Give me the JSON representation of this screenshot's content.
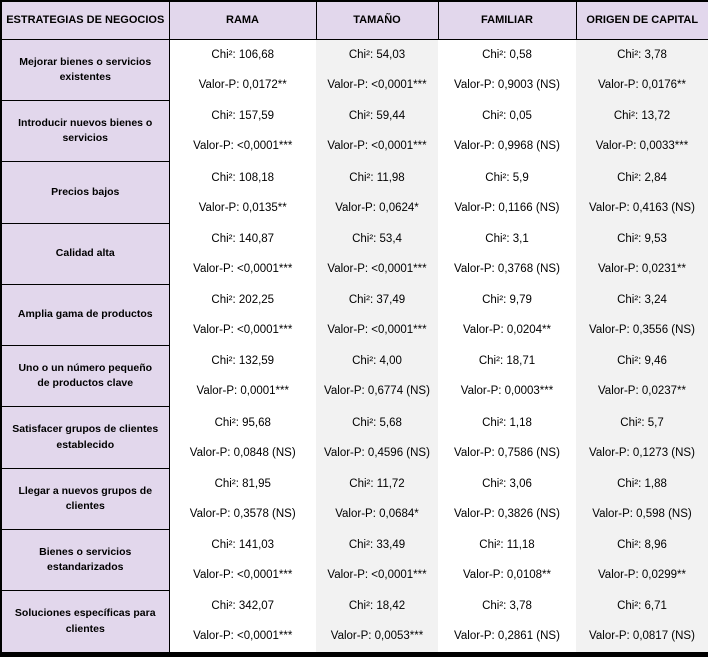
{
  "colors": {
    "header_bg": "#e2d7ec",
    "shaded_col_bg": "#f2f2f2",
    "border": "#000000"
  },
  "table": {
    "headers": [
      "ESTRATEGIAS DE NEGOCIOS",
      "RAMA",
      "TAMAÑO",
      "FAMILIAR",
      "ORIGEN DE CAPITAL"
    ],
    "rows": [
      {
        "strategy": "Mejorar bienes o servicios\nexistentes",
        "cells": [
          {
            "chi": "Chi²: 106,68",
            "p": "Valor-P: 0,0172**"
          },
          {
            "chi": "Chi²: 54,03",
            "p": "Valor-P: <0,0001***"
          },
          {
            "chi": "Chi²: 0,58",
            "p": "Valor-P: 0,9003 (NS)"
          },
          {
            "chi": "Chi²: 3,78",
            "p": "Valor-P: 0,0176**"
          }
        ]
      },
      {
        "strategy": "Introducir nuevos bienes o\nservicios",
        "cells": [
          {
            "chi": "Chi²: 157,59",
            "p": "Valor-P: <0,0001***"
          },
          {
            "chi": "Chi²: 59,44",
            "p": "Valor-P: <0,0001***"
          },
          {
            "chi": "Chi²: 0,05",
            "p": "Valor-P: 0,9968 (NS)"
          },
          {
            "chi": "Chi²: 13,72",
            "p": "Valor-P: 0,0033***"
          }
        ]
      },
      {
        "strategy": "Precios bajos",
        "cells": [
          {
            "chi": "Chi²: 108,18",
            "p": "Valor-P: 0,0135**"
          },
          {
            "chi": "Chi²: 11,98",
            "p": "Valor-P: 0,0624*"
          },
          {
            "chi": "Chi²: 5,9",
            "p": "Valor-P: 0,1166 (NS)"
          },
          {
            "chi": "Chi²: 2,84",
            "p": "Valor-P: 0,4163 (NS)"
          }
        ]
      },
      {
        "strategy": "Calidad alta",
        "cells": [
          {
            "chi": "Chi²: 140,87",
            "p": "Valor-P: <0,0001***"
          },
          {
            "chi": "Chi²: 53,4",
            "p": "Valor-P: <0,0001***"
          },
          {
            "chi": "Chi²: 3,1",
            "p": "Valor-P: 0,3768 (NS)"
          },
          {
            "chi": "Chi²: 9,53",
            "p": "Valor-P: 0,0231**"
          }
        ]
      },
      {
        "strategy": "Amplia gama de productos",
        "cells": [
          {
            "chi": "Chi²: 202,25",
            "p": "Valor-P: <0,0001***"
          },
          {
            "chi": "Chi²: 37,49",
            "p": "Valor-P: <0,0001***"
          },
          {
            "chi": "Chi²: 9,79",
            "p": "Valor-P: 0,0204**"
          },
          {
            "chi": "Chi²: 3,24",
            "p": "Valor-P: 0,3556 (NS)"
          }
        ]
      },
      {
        "strategy": "Uno o un número pequeño\nde productos clave",
        "cells": [
          {
            "chi": "Chi²: 132,59",
            "p": "Valor-P: 0,0001***"
          },
          {
            "chi": "Chi²: 4,00",
            "p": "Valor-P: 0,6774 (NS)"
          },
          {
            "chi": "Chi²: 18,71",
            "p": "Valor-P: 0,0003***"
          },
          {
            "chi": "Chi²: 9,46",
            "p": "Valor-P: 0,0237**"
          }
        ]
      },
      {
        "strategy": "Satisfacer grupos de clientes\nestablecido",
        "cells": [
          {
            "chi": "Chi²: 95,68",
            "p": "Valor-P: 0,0848 (NS)"
          },
          {
            "chi": "Chi²: 5,68",
            "p": "Valor-P: 0,4596 (NS)"
          },
          {
            "chi": "Chi²: 1,18",
            "p": "Valor-P: 0,7586 (NS)"
          },
          {
            "chi": "Chi²: 5,7",
            "p": "Valor-P: 0,1273 (NS)"
          }
        ]
      },
      {
        "strategy": "Llegar a nuevos grupos de\nclientes",
        "cells": [
          {
            "chi": "Chi²: 81,95",
            "p": "Valor-P: 0,3578 (NS)"
          },
          {
            "chi": "Chi²: 11,72",
            "p": "Valor-P: 0,0684*"
          },
          {
            "chi": "Chi²: 3,06",
            "p": "Valor-P: 0,3826 (NS)"
          },
          {
            "chi": "Chi²: 1,88",
            "p": "Valor-P: 0,598 (NS)"
          }
        ]
      },
      {
        "strategy": "Bienes o servicios\nestandarizados",
        "cells": [
          {
            "chi": "Chi²: 141,03",
            "p": "Valor-P: <0,0001***"
          },
          {
            "chi": "Chi²: 33,49",
            "p": "Valor-P: <0,0001***"
          },
          {
            "chi": "Chi²: 11,18",
            "p": "Valor-P: 0,0108**"
          },
          {
            "chi": "Chi²: 8,96",
            "p": "Valor-P: 0,0299**"
          }
        ]
      },
      {
        "strategy": "Soluciones específicas para\nclientes",
        "cells": [
          {
            "chi": "Chi²: 342,07",
            "p": "Valor-P: <0,0001***"
          },
          {
            "chi": "Chi²: 18,42",
            "p": "Valor-P: 0,0053***"
          },
          {
            "chi": "Chi²: 3,78",
            "p": "Valor-P: 0,2861 (NS)"
          },
          {
            "chi": "Chi²: 6,71",
            "p": "Valor-P: 0,0817 (NS)"
          }
        ]
      }
    ]
  }
}
